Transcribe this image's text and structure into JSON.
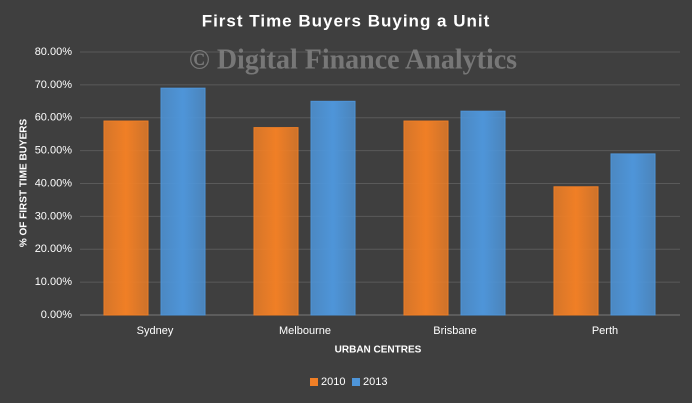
{
  "chart_data": {
    "type": "bar",
    "title": "First Time Buyers Buying a Unit",
    "watermark": "© Digital Finance Analytics",
    "x_label": "URBAN CENTRES",
    "y_label": "% OF FIRST TIME BUYERS",
    "categories": [
      "Sydney",
      "Melbourne",
      "Brisbane",
      "Perth"
    ],
    "series": [
      {
        "name": "2010",
        "color": "#f07f26",
        "values": [
          59,
          57,
          59,
          39
        ]
      },
      {
        "name": "2013",
        "color": "#4e95d9",
        "values": [
          69,
          65,
          62,
          49
        ]
      }
    ],
    "ylim": [
      0,
      80
    ],
    "yticks": [
      {
        "value": 0,
        "label": "0.00%"
      },
      {
        "value": 10,
        "label": "10.00%"
      },
      {
        "value": 20,
        "label": "20.00%"
      },
      {
        "value": 30,
        "label": "30.00%"
      },
      {
        "value": 40,
        "label": "40.00%"
      },
      {
        "value": 50,
        "label": "50.00%"
      },
      {
        "value": 60,
        "label": "60.00%"
      },
      {
        "value": 70,
        "label": "70.00%"
      },
      {
        "value": 80,
        "label": "80.00%"
      }
    ],
    "grid": true,
    "legend": "bottom"
  }
}
